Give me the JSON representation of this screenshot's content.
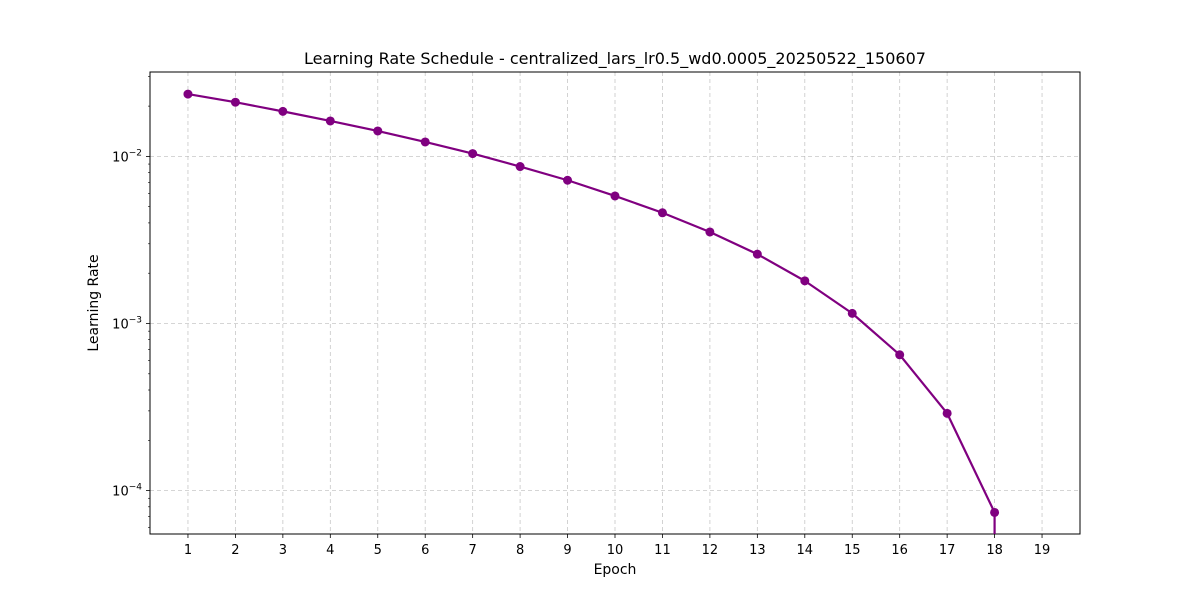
{
  "chart_data": {
    "type": "line",
    "title": "Learning Rate Schedule - centralized_lars_lr0.5_wd0.0005_20250522_150607",
    "xlabel": "Epoch",
    "ylabel": "Learning Rate",
    "yscale": "log",
    "xlim": [
      0.2,
      19.8
    ],
    "ylim": [
      5.5e-05,
      0.032
    ],
    "x_ticks": [
      1,
      2,
      3,
      4,
      5,
      6,
      7,
      8,
      9,
      10,
      11,
      12,
      13,
      14,
      15,
      16,
      17,
      18,
      19
    ],
    "y_major_ticks": [
      {
        "value": 0.0001,
        "base": "10",
        "exp": "−4"
      },
      {
        "value": 0.001,
        "base": "10",
        "exp": "−3"
      },
      {
        "value": 0.01,
        "base": "10",
        "exp": "−2"
      }
    ],
    "grid": true,
    "legend": "none",
    "series": [
      {
        "color": "#800080",
        "x": [
          1,
          2,
          3,
          4,
          5,
          6,
          7,
          8,
          9,
          10,
          11,
          12,
          13,
          14,
          15,
          16,
          17,
          18
        ],
        "y": [
          0.0236,
          0.0211,
          0.0186,
          0.0163,
          0.0142,
          0.0122,
          0.0104,
          0.0087,
          0.0072,
          0.0058,
          0.0046,
          0.00353,
          0.0026,
          0.0018,
          0.00115,
          0.00065,
          0.00029,
          7.4e-05
        ]
      }
    ]
  }
}
